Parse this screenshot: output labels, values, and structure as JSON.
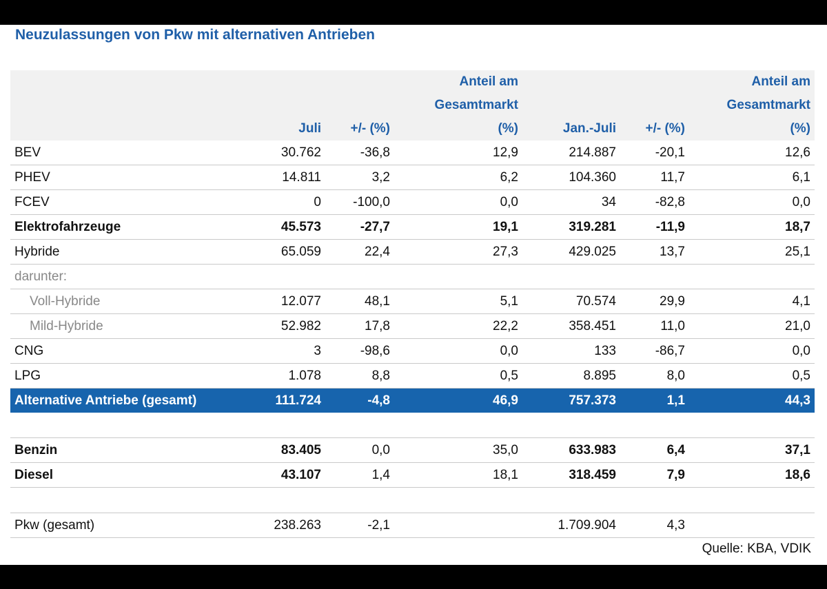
{
  "title": "Neuzulassungen von Pkw mit alternativen Antrieben",
  "header": {
    "juli": "Juli",
    "chg1": "+/- (%)",
    "anteil1": [
      "Anteil am",
      "Gesamtmarkt",
      "(%)"
    ],
    "janjuli": "Jan.-Juli",
    "chg2": "+/- (%)",
    "anteil2": [
      "Anteil am",
      "Gesamtmarkt",
      "(%)"
    ]
  },
  "rows": [
    {
      "label": "BEV",
      "juli": "30.762",
      "chg1": "-36,8",
      "anteil1": "12,9",
      "janjuli": "214.887",
      "chg2": "-20,1",
      "anteil2": "12,6"
    },
    {
      "label": "PHEV",
      "juli": "14.811",
      "chg1": "3,2",
      "anteil1": "6,2",
      "janjuli": "104.360",
      "chg2": "11,7",
      "anteil2": "6,1"
    },
    {
      "label": "FCEV",
      "juli": "0",
      "chg1": "-100,0",
      "anteil1": "0,0",
      "janjuli": "34",
      "chg2": "-82,8",
      "anteil2": "0,0"
    },
    {
      "label": "Elektrofahrzeuge",
      "juli": "45.573",
      "chg1": "-27,7",
      "anteil1": "19,1",
      "janjuli": "319.281",
      "chg2": "-11,9",
      "anteil2": "18,7"
    },
    {
      "label": "Hybride",
      "juli": "65.059",
      "chg1": "22,4",
      "anteil1": "27,3",
      "janjuli": "429.025",
      "chg2": "13,7",
      "anteil2": "25,1"
    },
    {
      "label": "darunter:"
    },
    {
      "label": "Voll-Hybride",
      "juli": "12.077",
      "chg1": "48,1",
      "anteil1": "5,1",
      "janjuli": "70.574",
      "chg2": "29,9",
      "anteil2": "4,1"
    },
    {
      "label": "Mild-Hybride",
      "juli": "52.982",
      "chg1": "17,8",
      "anteil1": "22,2",
      "janjuli": "358.451",
      "chg2": "11,0",
      "anteil2": "21,0"
    },
    {
      "label": "CNG",
      "juli": "3",
      "chg1": "-98,6",
      "anteil1": "0,0",
      "janjuli": "133",
      "chg2": "-86,7",
      "anteil2": "0,0"
    },
    {
      "label": "LPG",
      "juli": "1.078",
      "chg1": "8,8",
      "anteil1": "0,5",
      "janjuli": "8.895",
      "chg2": "8,0",
      "anteil2": "0,5"
    },
    {
      "label": "Alternative Antriebe (gesamt)",
      "juli": "111.724",
      "chg1": "-4,8",
      "anteil1": "46,9",
      "janjuli": "757.373",
      "chg2": "1,1",
      "anteil2": "44,3"
    },
    {
      "label": "Benzin",
      "juli": "83.405",
      "chg1": "0,0",
      "anteil1": "35,0",
      "janjuli": "633.983",
      "chg2": "6,4",
      "anteil2": "37,1"
    },
    {
      "label": "Diesel",
      "juli": "43.107",
      "chg1": "1,4",
      "anteil1": "18,1",
      "janjuli": "318.459",
      "chg2": "7,9",
      "anteil2": "18,6"
    },
    {
      "label": "Pkw (gesamt)",
      "juli": "238.263",
      "chg1": "-2,1",
      "anteil1": "",
      "janjuli": "1.709.904",
      "chg2": "4,3",
      "anteil2": ""
    }
  ],
  "source": "Quelle: KBA, VDIK",
  "colors": {
    "accent": "#1f5fa8",
    "total_row": "#1764ad",
    "header_bg": "#f1f1f1"
  }
}
